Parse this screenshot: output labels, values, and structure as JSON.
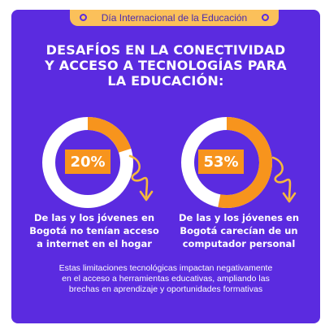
{
  "header": {
    "badge_text": "Día Internacional de la Educación"
  },
  "title": {
    "line1": "DESAFÍOS EN LA CONECTIVIDAD",
    "line2": "Y ACCESO A TECNOLOGÍAS PARA",
    "line3": "LA EDUCACIÓN:"
  },
  "stats": [
    {
      "percent_label": "20%",
      "value": 20,
      "caption_line1": "De las y los jóvenes en",
      "caption_line2": "Bogotá no tenían acceso",
      "caption_line3": "a internet en el hogar"
    },
    {
      "percent_label": "53%",
      "value": 53,
      "caption_line1": "De las y los jóvenes en",
      "caption_line2": "Bogotá carecían de un",
      "caption_line3": "computador personal"
    }
  ],
  "footnote": {
    "line1": "Estas limitaciones tecnológicas impactan negativamente",
    "line2": "en el acceso a herramientas educativas, ampliando las",
    "line3": "brechas en aprendizaje y oportunidades formativas"
  },
  "colors": {
    "background": "#5b2be0",
    "accent_orange": "#f7941d",
    "ring_white": "#ffffff",
    "badge_yellow": "#fbc05a",
    "arrow_yellow": "#f5b83d"
  },
  "icons": [
    "circle-dot-icon",
    "curly-arrow-icon"
  ]
}
